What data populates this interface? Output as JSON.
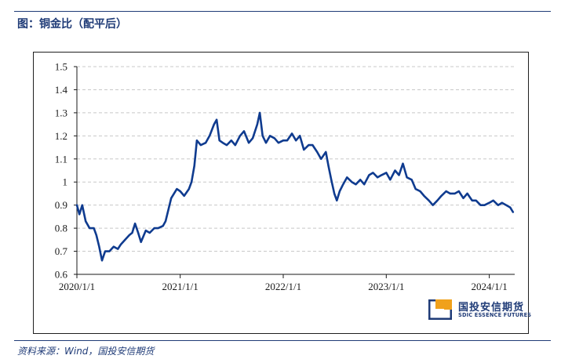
{
  "header": {
    "title": "图：铜金比（配平后）"
  },
  "footer": {
    "source": "资料来源：Wind，国投安信期货"
  },
  "logo": {
    "name_cn": "国投安信期货",
    "name_en": "SDIC ESSENCE FUTURES",
    "accent_color": "#f0a11b",
    "brand_color": "#1f3b77"
  },
  "chart_data": {
    "type": "line",
    "title": "",
    "xlabel": "",
    "ylabel": "",
    "ylim": [
      0.6,
      1.5
    ],
    "yticks": [
      0.6,
      0.7,
      0.8,
      0.9,
      1.0,
      1.1,
      1.2,
      1.3,
      1.4,
      1.5
    ],
    "ytick_labels": [
      "0.6",
      "0.7",
      "0.8",
      "0.9",
      "1",
      "1.1",
      "1.2",
      "1.3",
      "1.4",
      "1.5"
    ],
    "xlim": [
      "2020-01-01",
      "2024-03-31"
    ],
    "xticks": [
      "2020-01-01",
      "2021-01-01",
      "2022-01-01",
      "2023-01-01",
      "2024-01-01"
    ],
    "xtick_labels": [
      "2020/1/1",
      "2021/1/1",
      "2022/1/1",
      "2023/1/1",
      "2024/1/1"
    ],
    "grid": "horizontal-dashed",
    "line_color": "#0f3b8f",
    "series": [
      {
        "name": "",
        "x": [
          "2020-01-01",
          "2020-01-10",
          "2020-01-20",
          "2020-02-01",
          "2020-02-15",
          "2020-03-01",
          "2020-03-10",
          "2020-03-20",
          "2020-03-30",
          "2020-04-10",
          "2020-04-25",
          "2020-05-10",
          "2020-05-25",
          "2020-06-05",
          "2020-06-20",
          "2020-07-05",
          "2020-07-15",
          "2020-07-25",
          "2020-08-05",
          "2020-08-15",
          "2020-09-01",
          "2020-09-15",
          "2020-10-01",
          "2020-10-15",
          "2020-11-01",
          "2020-11-10",
          "2020-11-20",
          "2020-11-30",
          "2020-12-10",
          "2020-12-20",
          "2021-01-01",
          "2021-01-15",
          "2021-02-01",
          "2021-02-10",
          "2021-02-20",
          "2021-03-01",
          "2021-03-15",
          "2021-04-01",
          "2021-04-15",
          "2021-05-01",
          "2021-05-10",
          "2021-05-20",
          "2021-06-01",
          "2021-06-15",
          "2021-07-01",
          "2021-07-15",
          "2021-08-01",
          "2021-08-15",
          "2021-09-01",
          "2021-09-15",
          "2021-10-01",
          "2021-10-10",
          "2021-10-20",
          "2021-11-01",
          "2021-11-15",
          "2021-12-01",
          "2021-12-15",
          "2022-01-01",
          "2022-01-15",
          "2022-02-01",
          "2022-02-15",
          "2022-03-01",
          "2022-03-15",
          "2022-04-01",
          "2022-04-15",
          "2022-05-01",
          "2022-05-15",
          "2022-06-01",
          "2022-06-10",
          "2022-06-20",
          "2022-07-01",
          "2022-07-10",
          "2022-07-20",
          "2022-08-01",
          "2022-08-15",
          "2022-09-01",
          "2022-09-15",
          "2022-10-01",
          "2022-10-15",
          "2022-11-01",
          "2022-11-15",
          "2022-12-01",
          "2022-12-15",
          "2023-01-01",
          "2023-01-15",
          "2023-02-01",
          "2023-02-15",
          "2023-03-01",
          "2023-03-15",
          "2023-04-01",
          "2023-04-15",
          "2023-05-01",
          "2023-05-15",
          "2023-06-01",
          "2023-06-15",
          "2023-07-01",
          "2023-07-15",
          "2023-08-01",
          "2023-08-15",
          "2023-09-01",
          "2023-09-15",
          "2023-10-01",
          "2023-10-15",
          "2023-11-01",
          "2023-11-15",
          "2023-12-01",
          "2023-12-15",
          "2024-01-01",
          "2024-01-15",
          "2024-02-01",
          "2024-02-15",
          "2024-03-01",
          "2024-03-15",
          "2024-03-25"
        ],
        "values": [
          0.9,
          0.86,
          0.9,
          0.83,
          0.8,
          0.8,
          0.77,
          0.72,
          0.66,
          0.7,
          0.7,
          0.72,
          0.71,
          0.73,
          0.75,
          0.77,
          0.78,
          0.82,
          0.78,
          0.74,
          0.79,
          0.78,
          0.8,
          0.8,
          0.81,
          0.83,
          0.88,
          0.93,
          0.95,
          0.97,
          0.96,
          0.94,
          0.97,
          1.0,
          1.07,
          1.18,
          1.16,
          1.17,
          1.2,
          1.25,
          1.27,
          1.18,
          1.17,
          1.16,
          1.18,
          1.16,
          1.2,
          1.22,
          1.17,
          1.19,
          1.25,
          1.3,
          1.2,
          1.17,
          1.2,
          1.19,
          1.17,
          1.18,
          1.18,
          1.21,
          1.18,
          1.2,
          1.14,
          1.16,
          1.16,
          1.13,
          1.1,
          1.13,
          1.07,
          1.01,
          0.95,
          0.92,
          0.96,
          0.99,
          1.02,
          1.0,
          0.99,
          1.01,
          0.99,
          1.03,
          1.04,
          1.02,
          1.03,
          1.04,
          1.01,
          1.05,
          1.03,
          1.08,
          1.02,
          1.01,
          0.97,
          0.96,
          0.94,
          0.92,
          0.9,
          0.92,
          0.94,
          0.96,
          0.95,
          0.95,
          0.96,
          0.93,
          0.95,
          0.92,
          0.92,
          0.9,
          0.9,
          0.91,
          0.92,
          0.9,
          0.91,
          0.9,
          0.89,
          0.87
        ]
      }
    ]
  }
}
